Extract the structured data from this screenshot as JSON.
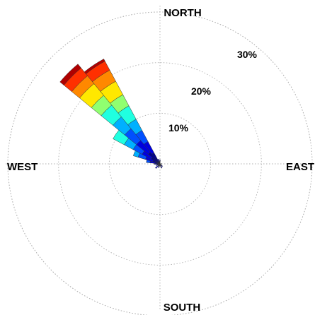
{
  "chart_data": {
    "type": "wind-rose",
    "directions": {
      "north": "NORTH",
      "east": "EAST",
      "south": "SOUTH",
      "west": "WEST"
    },
    "rings": [
      {
        "value": 10,
        "label": "10%"
      },
      {
        "value": 20,
        "label": "20%"
      },
      {
        "value": 30,
        "label": "30%"
      }
    ],
    "r_max": 30,
    "grid": true,
    "colors": [
      "#00008f",
      "#0000e0",
      "#0050ff",
      "#00b0ff",
      "#20ffe0",
      "#90ff70",
      "#ffe800",
      "#ff8800",
      "#ff3000",
      "#b00000"
    ],
    "sectors": [
      {
        "direction_deg": 315,
        "width_deg": 11.25,
        "cumulative": [
          3,
          6,
          9,
          12,
          15,
          17.5,
          20.5,
          22.5,
          24.5,
          25.5
        ]
      },
      {
        "direction_deg": 326.25,
        "width_deg": 11.25,
        "cumulative": [
          2.5,
          5,
          7.5,
          10,
          13,
          15.5,
          18.5,
          21,
          23,
          23.5
        ]
      },
      {
        "direction_deg": 303.75,
        "width_deg": 11.25,
        "cumulative": [
          2,
          4,
          6,
          8,
          10.5
        ]
      },
      {
        "direction_deg": 292.5,
        "width_deg": 11.25,
        "cumulative": [
          1.5,
          3,
          4.5,
          5.5
        ]
      },
      {
        "direction_deg": 281.25,
        "width_deg": 11.25,
        "cumulative": [
          1,
          2,
          2.7
        ]
      },
      {
        "direction_deg": 270,
        "width_deg": 11.25,
        "cumulative": [
          0.6,
          1.1
        ]
      },
      {
        "direction_deg": 258.75,
        "width_deg": 11.25,
        "cumulative": [
          0.4,
          0.6
        ]
      },
      {
        "direction_deg": 337.5,
        "width_deg": 11.25,
        "cumulative": [
          0.5,
          1
        ]
      },
      {
        "direction_deg": 348.75,
        "width_deg": 11.25,
        "cumulative": [
          0.5
        ]
      },
      {
        "direction_deg": 0,
        "width_deg": 11.25,
        "cumulative": [
          0.5,
          0.8
        ]
      },
      {
        "direction_deg": 90,
        "width_deg": 11.25,
        "cumulative": [
          0.4
        ]
      },
      {
        "direction_deg": 135,
        "width_deg": 11.25,
        "cumulative": [
          0.4,
          0.7
        ]
      },
      {
        "direction_deg": 157.5,
        "width_deg": 11.25,
        "cumulative": [
          0.5,
          0.9
        ]
      },
      {
        "direction_deg": 180,
        "width_deg": 11.25,
        "cumulative": [
          0.5
        ]
      },
      {
        "direction_deg": 202.5,
        "width_deg": 11.25,
        "cumulative": [
          0.5,
          0.8
        ]
      },
      {
        "direction_deg": 225,
        "width_deg": 11.25,
        "cumulative": [
          0.6,
          1.2
        ]
      },
      {
        "direction_deg": 247.5,
        "width_deg": 11.25,
        "cumulative": [
          0.5,
          0.8
        ]
      }
    ]
  }
}
